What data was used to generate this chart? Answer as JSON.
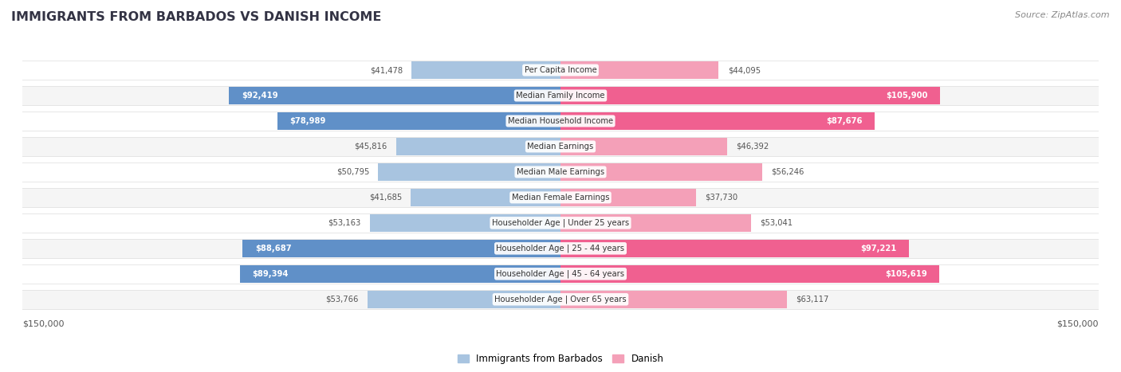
{
  "title": "IMMIGRANTS FROM BARBADOS VS DANISH INCOME",
  "source": "Source: ZipAtlas.com",
  "categories": [
    "Per Capita Income",
    "Median Family Income",
    "Median Household Income",
    "Median Earnings",
    "Median Male Earnings",
    "Median Female Earnings",
    "Householder Age | Under 25 years",
    "Householder Age | 25 - 44 years",
    "Householder Age | 45 - 64 years",
    "Householder Age | Over 65 years"
  ],
  "barbados_values": [
    41478,
    92419,
    78989,
    45816,
    50795,
    41685,
    53163,
    88687,
    89394,
    53766
  ],
  "danish_values": [
    44095,
    105900,
    87676,
    46392,
    56246,
    37730,
    53041,
    97221,
    105619,
    63117
  ],
  "barbados_labels": [
    "$41,478",
    "$92,419",
    "$78,989",
    "$45,816",
    "$50,795",
    "$41,685",
    "$53,163",
    "$88,687",
    "$89,394",
    "$53,766"
  ],
  "danish_labels": [
    "$44,095",
    "$105,900",
    "$87,676",
    "$46,392",
    "$56,246",
    "$37,730",
    "$53,041",
    "$97,221",
    "$105,619",
    "$63,117"
  ],
  "max_value": 150000,
  "barbados_color_light": "#a8c4e0",
  "barbados_color_dark": "#6090c8",
  "danish_color_light": "#f4a0b8",
  "danish_color_dark": "#f06090",
  "fig_bg_color": "#ffffff",
  "row_bg_color": "#ffffff",
  "row_alt_bg_color": "#f5f5f5",
  "legend_barbados": "Immigrants from Barbados",
  "legend_danish": "Danish",
  "bottom_left_label": "$150,000",
  "bottom_right_label": "$150,000",
  "dark_threshold": 75000,
  "title_color": "#333344",
  "source_color": "#888888",
  "label_color_outside": "#555555",
  "label_color_inside": "#ffffff"
}
